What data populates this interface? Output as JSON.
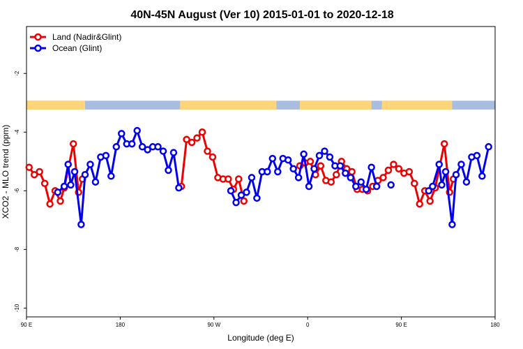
{
  "chart_data": {
    "type": "line",
    "title": "40N-45N August (Ver 10)   2015-01-01 to 2020-12-18",
    "xlabel": "Longitude (deg E)",
    "ylabel": "XCO2 - MLO trend (ppm)",
    "xlim": [
      90,
      450
    ],
    "ylim": [
      -10.3,
      -0.4
    ],
    "x_ticks": [
      {
        "value": 90,
        "label": "90 E"
      },
      {
        "value": 162,
        "label": "180"
      },
      {
        "value": 234,
        "label": "90 W"
      },
      {
        "value": 306,
        "label": "0"
      },
      {
        "value": 378,
        "label": "90 E"
      },
      {
        "value": 450,
        "label": "180"
      }
    ],
    "y_ticks": [
      -2,
      -4,
      -6,
      -8,
      -10
    ],
    "grid": false,
    "legend_position": "top-left",
    "land_ocean_strip": {
      "y_range": [
        -3.23,
        -2.93
      ],
      "land_color": "#ffd57a",
      "ocean_color": "#a8bde0",
      "land_segments": [
        [
          90,
          135
        ],
        [
          208,
          282
        ],
        [
          300,
          355
        ],
        [
          363,
          417
        ]
      ]
    },
    "series": [
      {
        "name": "Land (Nadir&Glint)",
        "color": "#ee0000",
        "points": [
          [
            92,
            -5.2
          ],
          [
            96,
            -5.45
          ],
          [
            100,
            -5.35
          ],
          [
            104,
            -5.75
          ],
          [
            108,
            -6.45
          ],
          [
            112,
            -6.0
          ],
          [
            116,
            -6.35
          ],
          [
            119,
            -5.9
          ],
          [
            126,
            -4.4
          ],
          [
            130,
            -6.05
          ],
          [
            133,
            -5.6
          ],
          [
            209,
            -5.85
          ],
          [
            213,
            -4.25
          ],
          [
            217,
            -4.35
          ],
          [
            221,
            -4.2
          ],
          [
            225,
            -4.0
          ],
          [
            229,
            -4.65
          ],
          [
            233,
            -4.85
          ],
          [
            237,
            -5.55
          ],
          [
            241,
            -5.6
          ],
          [
            245,
            -5.6
          ],
          [
            249,
            -5.95
          ],
          [
            253,
            -5.6
          ],
          [
            257,
            -6.35
          ],
          [
            300,
            -5.15
          ],
          [
            304,
            -5.05
          ],
          [
            308,
            -5.0
          ],
          [
            312,
            -5.45
          ],
          [
            316,
            -5.15
          ],
          [
            320,
            -5.65
          ],
          [
            324,
            -5.7
          ],
          [
            328,
            -5.45
          ],
          [
            332,
            -5.0
          ],
          [
            336,
            -5.25
          ],
          [
            340,
            -5.35
          ],
          [
            344,
            -5.95
          ],
          [
            348,
            -5.95
          ],
          [
            352,
            -6.0
          ],
          [
            356,
            -5.85
          ],
          [
            360,
            -5.65
          ],
          [
            364,
            -5.55
          ],
          [
            368,
            -5.3
          ],
          [
            372,
            -5.1
          ],
          [
            376,
            -5.25
          ],
          [
            380,
            -5.4
          ],
          [
            384,
            -5.35
          ],
          [
            388,
            -5.75
          ],
          [
            392,
            -6.45
          ],
          [
            396,
            -6.0
          ],
          [
            400,
            -6.35
          ],
          [
            404,
            -5.9
          ],
          [
            411,
            -4.4
          ],
          [
            415,
            -6.05
          ],
          [
            418,
            -5.6
          ]
        ]
      },
      {
        "name": "Ocean (Glint)",
        "color": "#0000ee",
        "points": [
          [
            114,
            -6.05
          ],
          [
            119,
            -5.85
          ],
          [
            122,
            -5.1
          ],
          [
            124,
            -5.8
          ],
          [
            127,
            -5.35
          ],
          [
            132,
            -7.15
          ],
          [
            135,
            -5.45
          ],
          [
            139,
            -5.1
          ],
          [
            143,
            -5.7
          ],
          [
            147,
            -4.85
          ],
          [
            151,
            -4.8
          ],
          [
            155,
            -5.5
          ],
          [
            159,
            -4.5
          ],
          [
            163,
            -4.05
          ],
          [
            167,
            -4.4
          ],
          [
            171,
            -4.4
          ],
          [
            175,
            -3.95
          ],
          [
            179,
            -4.5
          ],
          [
            183,
            -4.6
          ],
          [
            187,
            -4.5
          ],
          [
            191,
            -4.5
          ],
          [
            195,
            -4.65
          ],
          [
            199,
            -5.3
          ],
          [
            203,
            -4.7
          ],
          [
            207,
            -5.9
          ],
          [
            247,
            -6.0
          ],
          [
            251,
            -6.4
          ],
          [
            255,
            -6.15
          ],
          [
            259,
            -6.05
          ],
          [
            263,
            -5.55
          ],
          [
            267,
            -6.25
          ],
          [
            271,
            -5.35
          ],
          [
            275,
            -5.35
          ],
          [
            279,
            -4.9
          ],
          [
            283,
            -5.35
          ],
          [
            287,
            -4.9
          ],
          [
            291,
            -4.95
          ],
          [
            295,
            -5.25
          ],
          [
            299,
            -5.55
          ],
          [
            303,
            -4.75
          ],
          [
            307,
            -5.85
          ],
          [
            311,
            -5.25
          ],
          [
            315,
            -4.8
          ],
          [
            319,
            -4.65
          ],
          [
            323,
            -4.85
          ],
          [
            327,
            -5.15
          ],
          [
            331,
            -5.15
          ],
          [
            335,
            -5.4
          ],
          [
            339,
            -5.55
          ],
          [
            343,
            -5.85
          ],
          [
            347,
            -5.7
          ],
          [
            351,
            -5.95
          ],
          [
            355,
            -5.2
          ],
          [
            359,
            -5.85
          ],
          [
            370,
            -5.8
          ],
          [
            399,
            -6.0
          ],
          [
            402,
            -5.85
          ],
          [
            407,
            -5.1
          ],
          [
            409,
            -5.8
          ],
          [
            412,
            -5.35
          ],
          [
            417,
            -7.15
          ],
          [
            420,
            -5.45
          ],
          [
            424,
            -5.1
          ],
          [
            428,
            -5.7
          ],
          [
            432,
            -4.85
          ],
          [
            436,
            -4.8
          ],
          [
            440,
            -5.5
          ],
          [
            445,
            -4.5
          ]
        ]
      }
    ]
  }
}
